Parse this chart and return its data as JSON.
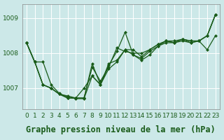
{
  "title": "Graphe pression niveau de la mer (hPa)",
  "bg_plot": "#cce8e8",
  "bg_label": "#cce8e8",
  "line_color": "#1a5c1a",
  "grid_color": "#b0d8d8",
  "xlim": [
    -0.5,
    23.5
  ],
  "ylim": [
    1006.4,
    1009.4
  ],
  "yticks": [
    1007,
    1008,
    1009
  ],
  "xticks": [
    0,
    1,
    2,
    3,
    4,
    5,
    6,
    7,
    8,
    9,
    10,
    11,
    12,
    13,
    14,
    15,
    16,
    17,
    18,
    19,
    20,
    21,
    22,
    23
  ],
  "series": [
    [
      1008.3,
      1007.75,
      1007.75,
      1007.1,
      1006.85,
      1006.75,
      1006.7,
      1006.7,
      1007.35,
      1007.1,
      1007.65,
      1008.05,
      1008.6,
      1007.95,
      1007.8,
      1007.95,
      1008.2,
      1008.3,
      1008.3,
      1008.35,
      1008.3,
      1008.35,
      1008.5,
      1009.1
    ],
    [
      1008.3,
      1007.75,
      1007.1,
      1007.0,
      1006.83,
      1006.72,
      1006.72,
      1006.72,
      1007.7,
      1007.1,
      1007.55,
      1007.75,
      1008.1,
      1008.1,
      1007.9,
      1008.1,
      1008.25,
      1008.35,
      1008.3,
      1008.4,
      1008.3,
      1008.35,
      1008.1,
      1008.5
    ],
    [
      1008.3,
      1007.75,
      1007.1,
      1007.0,
      1006.83,
      1006.72,
      1006.72,
      1006.72,
      1007.6,
      1007.2,
      1007.6,
      1008.15,
      1008.05,
      1008.0,
      1008.0,
      1008.1,
      1008.25,
      1008.35,
      1008.35,
      1008.4,
      1008.35,
      1008.35,
      1008.5,
      1009.1
    ],
    [
      1008.3,
      1007.75,
      1007.1,
      1007.0,
      1006.83,
      1006.78,
      1006.72,
      1007.0,
      1007.35,
      1007.1,
      1007.7,
      1007.8,
      1008.1,
      1007.95,
      1007.85,
      1008.05,
      1008.2,
      1008.35,
      1008.3,
      1008.4,
      1008.35,
      1008.35,
      1008.5,
      1009.1
    ]
  ],
  "title_fontsize": 8.5,
  "tick_fontsize": 6.5,
  "marker": "D",
  "marker_size": 2.0,
  "linewidth": 0.9
}
